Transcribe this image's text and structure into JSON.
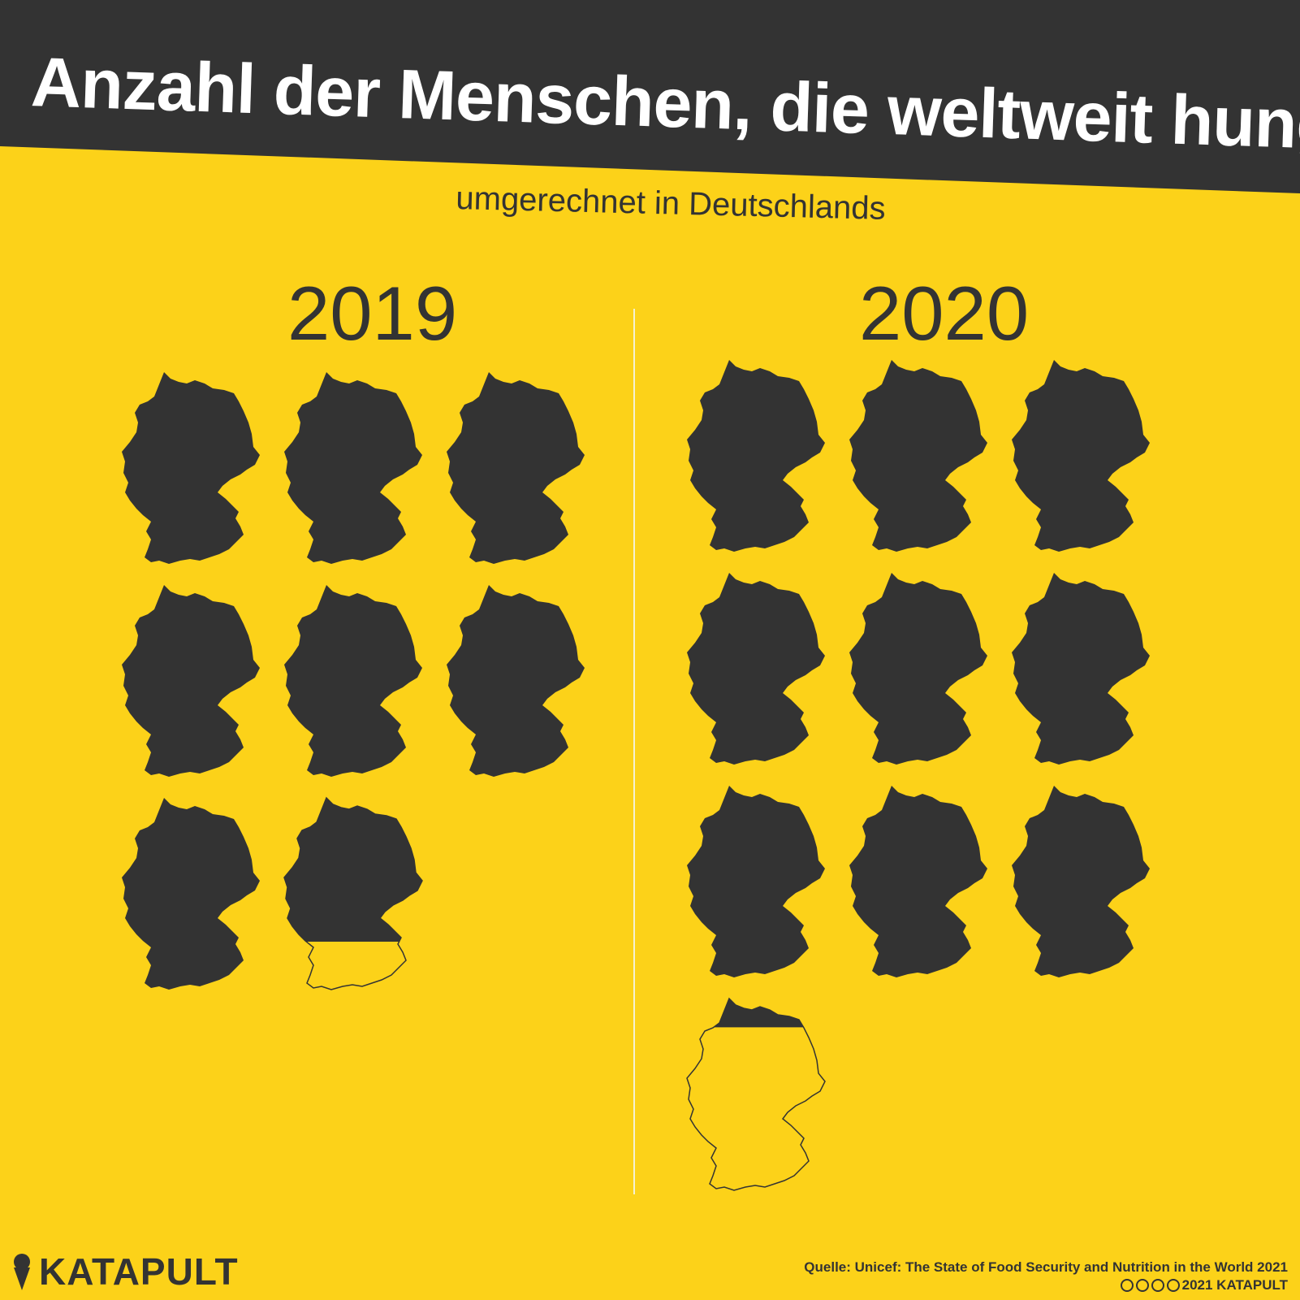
{
  "header": {
    "title": "Anzahl der Menschen, die weltweit hungern",
    "subtitle": "umgerechnet in Deutschlands"
  },
  "panels": [
    {
      "year": "2019",
      "full_maps": 7,
      "partial_fill": 0.75
    },
    {
      "year": "2020",
      "full_maps": 9,
      "partial_fill": 0.15
    }
  ],
  "footer": {
    "brand": "KATAPULT",
    "source": "Quelle:  Unicef: The State of Food Security and Nutrition in the World 2021",
    "copyright": "2021 KATAPULT",
    "license_icons": [
      "cc-icon",
      "by-icon",
      "nc-icon",
      "nd-icon"
    ]
  },
  "colors": {
    "background": "#fcd219",
    "dark": "#333333",
    "light": "#ffffff"
  }
}
